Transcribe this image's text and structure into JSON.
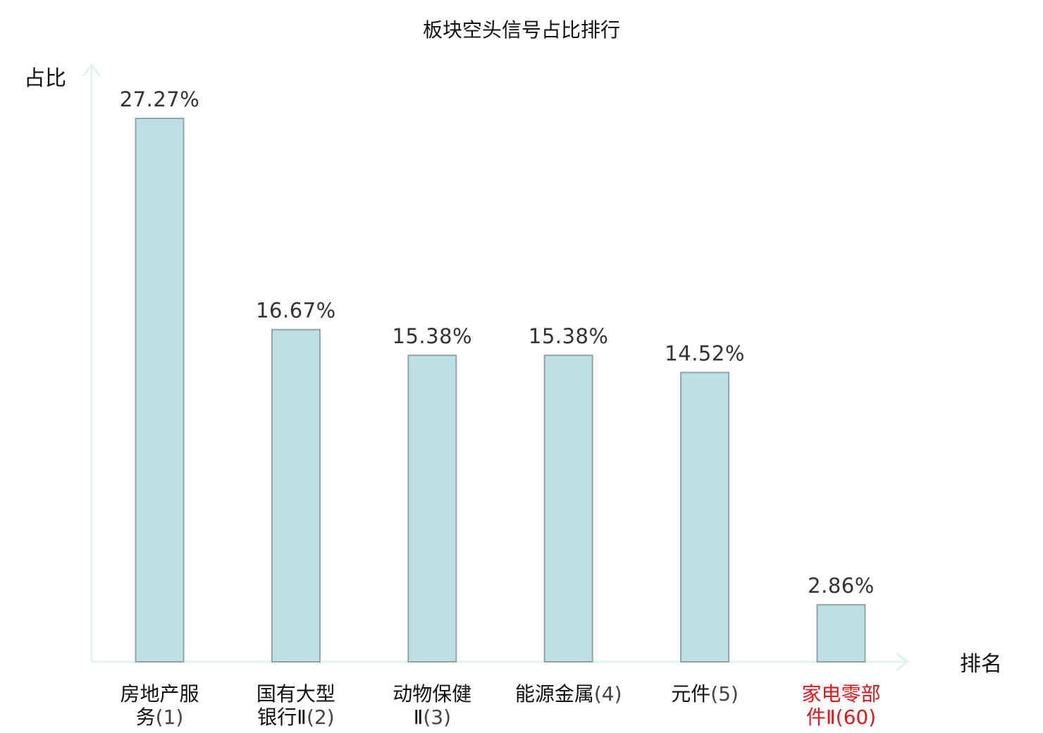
{
  "chart_data": {
    "type": "bar",
    "title": "板块空头信号占比排行",
    "ylabel": "占比",
    "xlabel": "排名",
    "ylim": [
      0,
      30
    ],
    "grid": false,
    "categories": [
      {
        "name_lines": [
          "房地产服",
          "务"
        ],
        "rank": "(1)",
        "highlight": false
      },
      {
        "name_lines": [
          "国有大型",
          "银行Ⅱ"
        ],
        "rank": "(2)",
        "highlight": false
      },
      {
        "name_lines": [
          "动物保健",
          "Ⅱ"
        ],
        "rank": "(3)",
        "highlight": false
      },
      {
        "name_lines": [
          "能源金属"
        ],
        "rank": "(4)",
        "highlight": false
      },
      {
        "name_lines": [
          "元件"
        ],
        "rank": "(5)",
        "highlight": false
      },
      {
        "name_lines": [
          "家电零部",
          "件Ⅱ"
        ],
        "rank": "(60)",
        "highlight": true
      }
    ],
    "values": [
      27.27,
      16.67,
      15.38,
      15.38,
      14.52,
      2.86
    ],
    "value_labels": [
      "27.27%",
      "16.67%",
      "15.38%",
      "15.38%",
      "14.52%",
      "2.86%"
    ]
  },
  "colors": {
    "bar_fill": "#bde0e3",
    "bar_stroke": "#8fa6a8",
    "axis": "#e0f2f0",
    "text": "#111111",
    "rank_text": "#444444",
    "highlight": "#e0161b"
  }
}
